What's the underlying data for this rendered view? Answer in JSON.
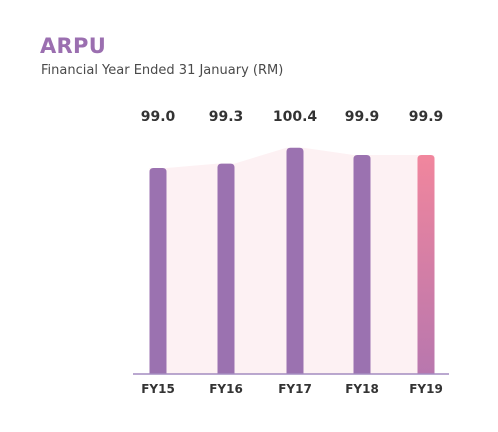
{
  "chart_data": {
    "type": "bar",
    "title": "ARPU",
    "subtitle": "Financial Year Ended 31 January (RM)",
    "categories": [
      "FY15",
      "FY16",
      "FY17",
      "FY18",
      "FY19"
    ],
    "values": [
      99.0,
      99.3,
      100.4,
      99.9,
      99.9
    ],
    "data_labels": [
      "99.0",
      "99.3",
      "100.4",
      "99.9",
      "99.9"
    ],
    "colors": {
      "bar": "#9b72b0",
      "highlight_top": "#f1869d",
      "highlight_bottom": "#b877ae",
      "area_fill": "#fdf1f3",
      "axis": "#a48cc0",
      "title": "#9b6fb0"
    },
    "highlight_index": 4,
    "grid": false,
    "legend": "none"
  }
}
